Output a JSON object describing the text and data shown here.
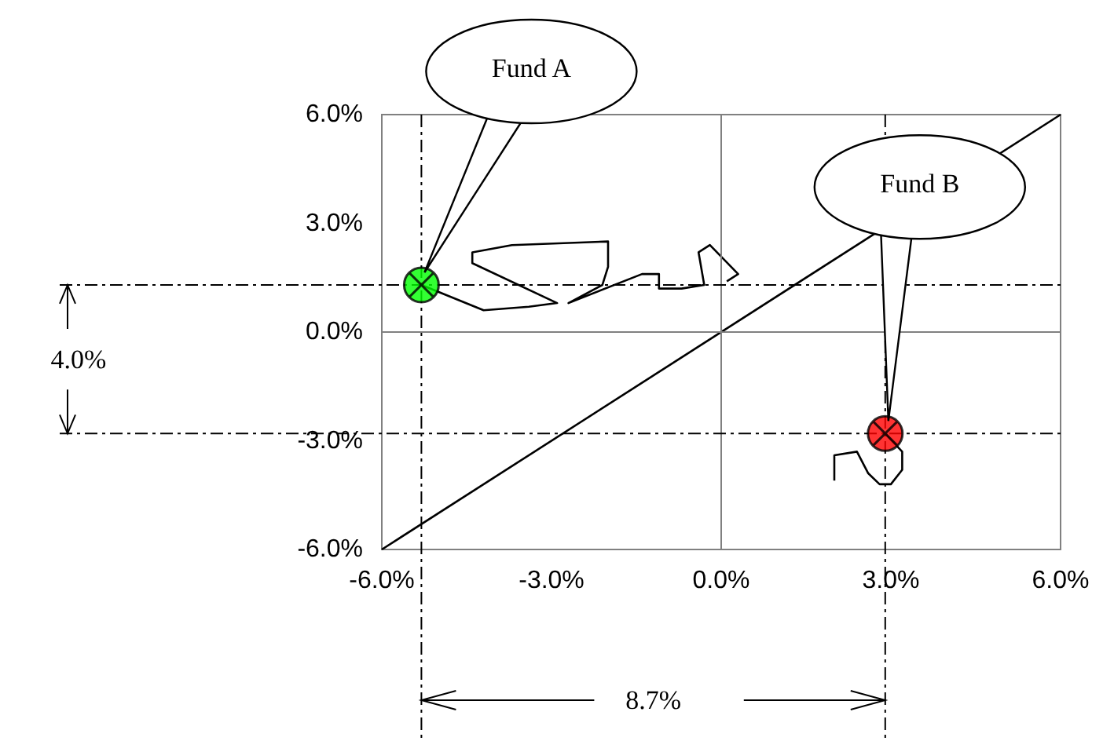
{
  "chart_data": {
    "type": "scatter",
    "xlim": [
      -6,
      6
    ],
    "ylim": [
      -6,
      6
    ],
    "xticks": [
      {
        "value": -6,
        "label": "-6.0%"
      },
      {
        "value": -3,
        "label": "-3.0%"
      },
      {
        "value": 0,
        "label": "0.0%"
      },
      {
        "value": 3,
        "label": "3.0%"
      },
      {
        "value": 6,
        "label": "6.0%"
      }
    ],
    "yticks": [
      {
        "value": -6,
        "label": "-6.0%"
      },
      {
        "value": -3,
        "label": "-3.0%"
      },
      {
        "value": 0,
        "label": "0.0%"
      },
      {
        "value": 3,
        "label": "3.0%"
      },
      {
        "value": 6,
        "label": "6.0%"
      }
    ],
    "grid": false,
    "legend": false,
    "series": [
      {
        "type": "line",
        "color": "#000000",
        "x": [
          -6,
          6
        ],
        "values": [
          -6,
          6
        ]
      },
      {
        "type": "line",
        "color": "#000000",
        "x": [
          -5.3,
          -4.2,
          -3.4,
          -2.9,
          -4.4,
          -4.4,
          -3.7,
          -2.0,
          -2.0,
          -2.1,
          -2.7,
          -1.4,
          -1.1,
          -1.1,
          -0.7,
          -0.3,
          -0.4,
          -0.2,
          0.3,
          0.1
        ],
        "values": [
          1.3,
          0.6,
          0.7,
          0.8,
          1.9,
          2.2,
          2.4,
          2.5,
          1.8,
          1.3,
          0.8,
          1.6,
          1.6,
          1.2,
          1.2,
          1.3,
          2.2,
          2.4,
          1.6,
          1.4
        ]
      },
      {
        "type": "line",
        "color": "#000000",
        "x": [
          2.9,
          3.2,
          3.2,
          3.0,
          2.8,
          2.6,
          2.4,
          2.0,
          2.0
        ],
        "values": [
          -2.8,
          -3.3,
          -3.8,
          -4.2,
          -4.2,
          -3.9,
          -3.3,
          -3.4,
          -4.1
        ]
      },
      {
        "name": "Fund A",
        "color": "#00ff00",
        "x": [
          -5.3
        ],
        "values": [
          1.3
        ]
      },
      {
        "name": "Fund B",
        "color": "#ff0000",
        "x": [
          2.9
        ],
        "values": [
          -2.8
        ]
      }
    ],
    "ref_lines": [
      {
        "axis": "x",
        "value": 0,
        "color": "#808080",
        "line_style": "solid"
      },
      {
        "axis": "y",
        "value": 0,
        "color": "#808080",
        "line_style": "solid"
      },
      {
        "axis": "x",
        "value": -5.3,
        "color": "#000000",
        "line_style": "dashed"
      },
      {
        "axis": "x",
        "value": 2.9,
        "color": "#000000",
        "line_style": "dashed"
      },
      {
        "axis": "y",
        "value": 1.3,
        "color": "#000000",
        "line_style": "dashed"
      },
      {
        "axis": "y",
        "value": -2.8,
        "color": "#000000",
        "line_style": "dashed"
      }
    ],
    "annotations": [
      "4.0%",
      "8.7%"
    ]
  }
}
